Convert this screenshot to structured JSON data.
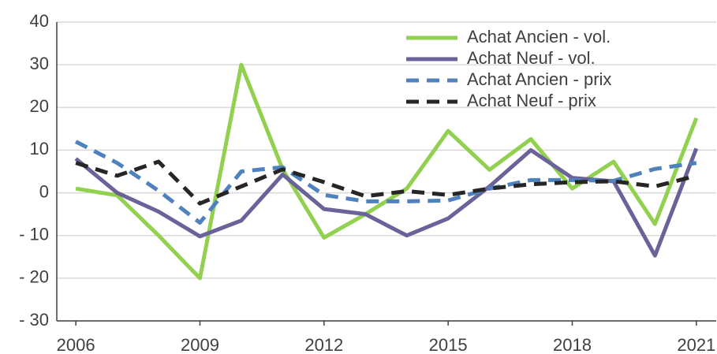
{
  "chart_data": {
    "type": "line",
    "x": [
      2006,
      2007,
      2008,
      2009,
      2010,
      2011,
      2012,
      2013,
      2014,
      2015,
      2016,
      2017,
      2018,
      2019,
      2020,
      2021
    ],
    "series": [
      {
        "name": "Achat Ancien - vol.",
        "color": "#92d050",
        "dash": false,
        "values": [
          1,
          -0.6,
          -10,
          -20,
          30,
          5.5,
          -10.5,
          -5,
          1,
          14.5,
          5.4,
          12.6,
          1,
          7.3,
          -7.3,
          17.5
        ]
      },
      {
        "name": "Achat Neuf - vol.",
        "color": "#6a6399",
        "dash": false,
        "values": [
          8,
          0,
          -4.4,
          -10.2,
          -6.5,
          4.3,
          -3.8,
          -5,
          -10,
          -6,
          1.5,
          10,
          3.5,
          2.7,
          -14.7,
          10.4
        ]
      },
      {
        "name": "Achat Ancien - prix",
        "color": "#4f81bd",
        "dash": true,
        "values": [
          12,
          7,
          0.5,
          -7,
          5,
          6,
          -0.5,
          -2,
          -2,
          -1.8,
          1,
          3,
          3,
          2.8,
          5.6,
          7
        ]
      },
      {
        "name": "Achat Neuf - prix",
        "color": "#262626",
        "dash": true,
        "values": [
          7,
          4,
          7.3,
          -2.5,
          1.5,
          5.5,
          2.5,
          -0.8,
          0.4,
          -0.5,
          1,
          2,
          2.5,
          2.7,
          1.5,
          4
        ]
      }
    ],
    "xlim": [
      2005.54,
      2021.48
    ],
    "xticks": [
      2006,
      2009,
      2012,
      2015,
      2018,
      2021
    ],
    "ylim": [
      -30,
      40
    ],
    "yticks": [
      {
        "value": -30,
        "label": "- 30"
      },
      {
        "value": -20,
        "label": "- 20"
      },
      {
        "value": -10,
        "label": "- 10"
      },
      0,
      10,
      20,
      30,
      40
    ],
    "grid": true,
    "legend": "top-right"
  }
}
